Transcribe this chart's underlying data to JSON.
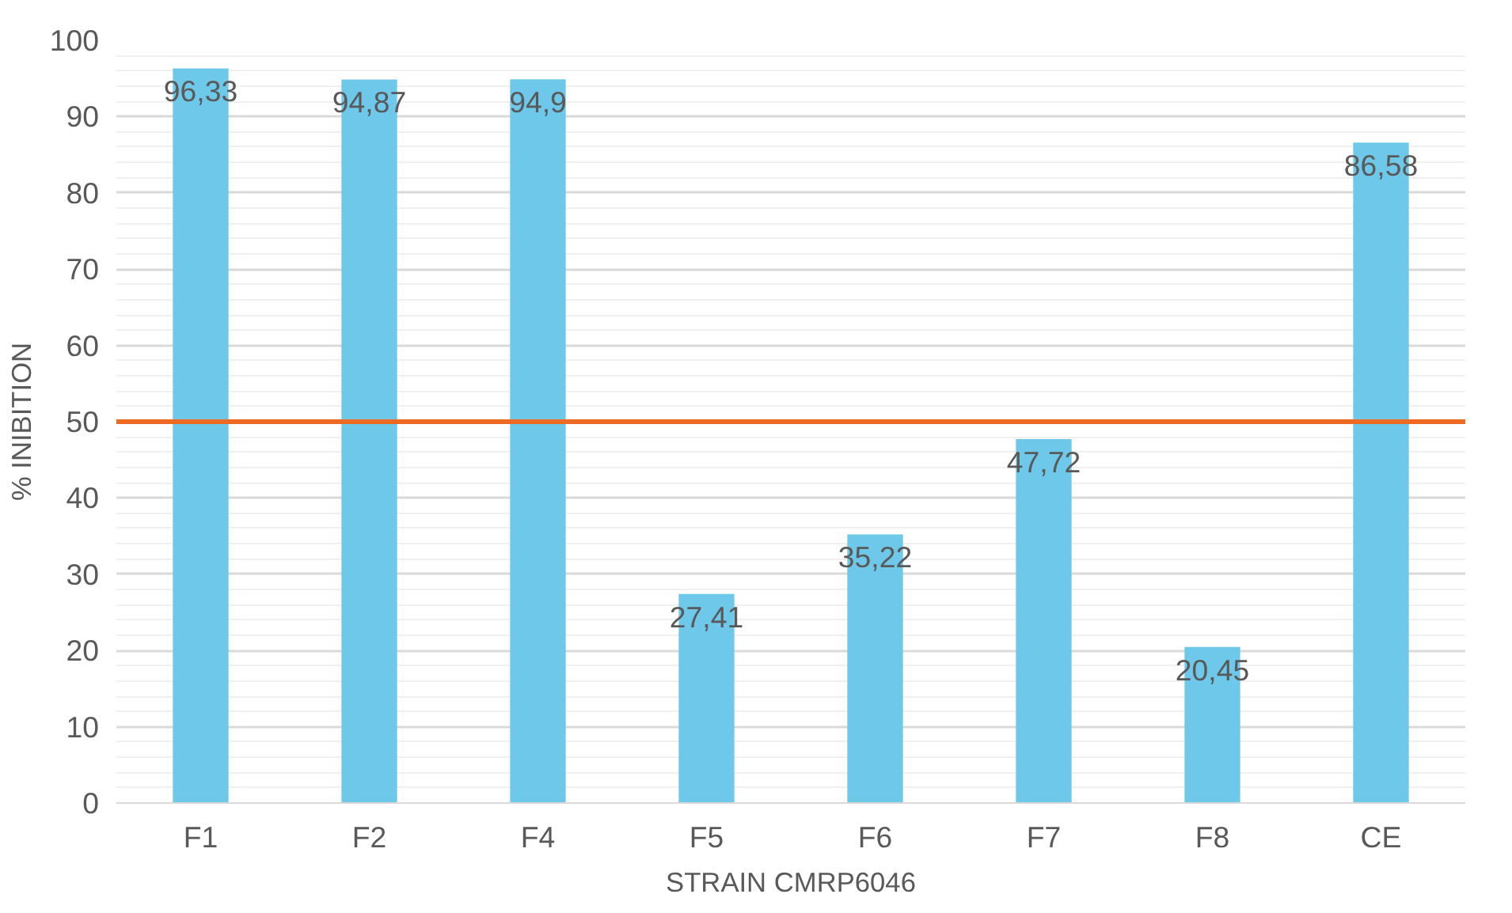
{
  "chart_data": {
    "type": "bar",
    "xlabel": "STRAIN CMRP6046",
    "ylabel": "% INIBITION",
    "categories": [
      "F1",
      "F2",
      "F4",
      "F5",
      "F6",
      "F7",
      "F8",
      "CE"
    ],
    "values": [
      96.33,
      94.87,
      94.9,
      27.41,
      35.22,
      47.72,
      20.45,
      86.58
    ],
    "value_labels": [
      "96,33",
      "94,87",
      "94,9",
      "27,41",
      "35,22",
      "47,72",
      "20,45",
      "86,58"
    ],
    "color": "#6ec8ea",
    "ylim": [
      0,
      100
    ],
    "yticks": [
      0,
      10,
      20,
      30,
      40,
      50,
      60,
      70,
      80,
      90,
      100
    ],
    "grid": "y",
    "ref_lines": [
      {
        "axis": "y",
        "value": 50,
        "label": null,
        "color": "#ed6a24"
      }
    ]
  }
}
